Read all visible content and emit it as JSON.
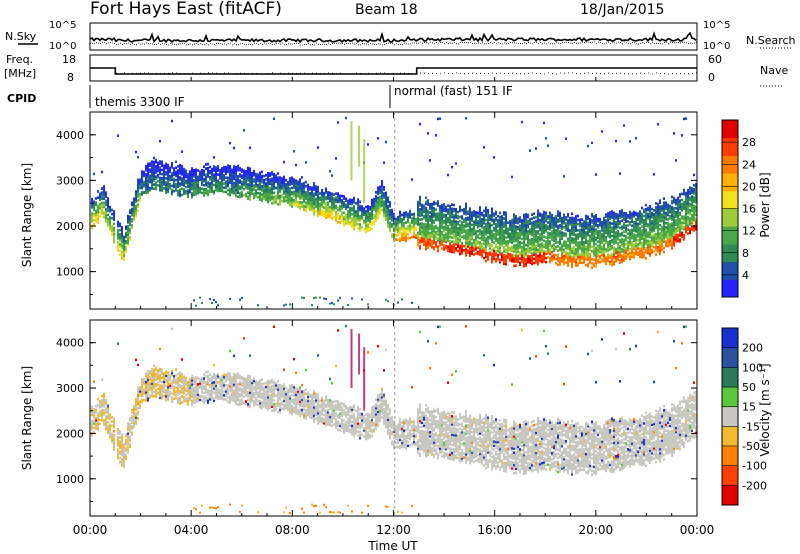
{
  "header": {
    "station": "Fort Hays East (fitACF)",
    "beam": "Beam 18",
    "date": "18/Jan/2015"
  },
  "noise_panel": {
    "left_label": "N.Sky",
    "right_label": "N.Search",
    "left_ticks": [
      "10^5",
      "10^0"
    ],
    "right_ticks": [
      "10^5",
      "10^0"
    ]
  },
  "freq_panel": {
    "left_label_1": "Freq.",
    "left_label_2": "[MHz]",
    "right_label": "Nave",
    "left_ticks": [
      "18",
      "8"
    ],
    "right_ticks": [
      "60",
      "0"
    ]
  },
  "cpid": {
    "label": "CPID",
    "modes": [
      {
        "name": "themis 3300 IF",
        "start_hour": 0,
        "end_hour": 12
      },
      {
        "name": "normal (fast) 151 IF",
        "start_hour": 12,
        "end_hour": 24
      }
    ]
  },
  "x_axis": {
    "label": "Time UT",
    "ticks": [
      "00:00",
      "04:00",
      "08:00",
      "12:00",
      "16:00",
      "20:00",
      "00:00"
    ]
  },
  "power_panel": {
    "ylabel": "Slant Range [km]",
    "yticks": [
      "4000",
      "3000",
      "2000",
      "1000"
    ],
    "colorbar_label": "Power [dB]",
    "colorbar_ticks": [
      "28",
      "24",
      "20",
      "16",
      "12",
      "8",
      "4"
    ],
    "colors": [
      "#2424ff",
      "#1f4fa8",
      "#2f8a55",
      "#4aa84a",
      "#9ecb3b",
      "#f2e020",
      "#ffb000",
      "#ff7a00",
      "#ff3b00",
      "#e00000"
    ]
  },
  "velocity_panel": {
    "ylabel": "Slant Range [km]",
    "yticks": [
      "4000",
      "3000",
      "2000",
      "1000"
    ],
    "colorbar_label": "Velocity [m s⁻¹]",
    "colorbar_ticks": [
      "200",
      "100",
      "50",
      "15",
      "-15",
      "-50",
      "-100",
      "-200"
    ],
    "colors": [
      "#1a2fd0",
      "#2a50a0",
      "#2d7a58",
      "#5cc93a",
      "#c8c8c0",
      "#f2b830",
      "#ff8000",
      "#ff4000",
      "#e00000"
    ]
  },
  "chart_data": [
    {
      "type": "line",
      "title": "Fort Hays East (fitACF)",
      "xlabel": "Time UT",
      "ylabel": "Freq. [MHz]",
      "series": [
        {
          "name": "Freq.",
          "x": [
            "00:00",
            "01:00",
            "01:00",
            "12:55",
            "12:55",
            "24:00"
          ],
          "y": [
            13,
            13,
            10.7,
            10.7,
            13,
            13
          ]
        }
      ],
      "ylim": [
        8,
        18
      ]
    },
    {
      "type": "heatmap",
      "ylabel": "Slant Range [km]",
      "xlabel": "Time UT",
      "xlim": [
        0,
        24
      ],
      "ylim": [
        180,
        4500
      ],
      "value_label": "Power [dB]",
      "value_range": [
        0,
        32
      ],
      "scatter_band": {
        "x": [
          0.0,
          0.5,
          1.0,
          1.3,
          2.0,
          2.5,
          3.0,
          4.0,
          5.0,
          6.0,
          7.0,
          8.0,
          9.0,
          10.0,
          11.0,
          11.5,
          12.0,
          13.0,
          14.0,
          15.0,
          16.0,
          17.0,
          18.0,
          19.0,
          20.0,
          21.0,
          22.0,
          23.0,
          24.0
        ],
        "center_km": [
          2200,
          2500,
          1800,
          1500,
          2900,
          3100,
          3000,
          2900,
          3000,
          2900,
          2800,
          2700,
          2500,
          2300,
          2100,
          2600,
          1900,
          2000,
          1900,
          1800,
          1700,
          1600,
          1700,
          1600,
          1600,
          1700,
          1800,
          2000,
          2400
        ],
        "peak_power_db": [
          20,
          16,
          20,
          16,
          8,
          8,
          8,
          10,
          10,
          12,
          14,
          16,
          20,
          18,
          18,
          14,
          24,
          26,
          28,
          28,
          28,
          28,
          24,
          24,
          24,
          24,
          24,
          28,
          28
        ]
      }
    },
    {
      "type": "heatmap",
      "ylabel": "Slant Range [km]",
      "xlabel": "Time UT",
      "xlim": [
        0,
        24
      ],
      "ylim": [
        180,
        4500
      ],
      "value_label": "Velocity [m s⁻¹]",
      "value_range": [
        -200,
        200
      ],
      "dominant_value": "-15 to 15"
    }
  ]
}
